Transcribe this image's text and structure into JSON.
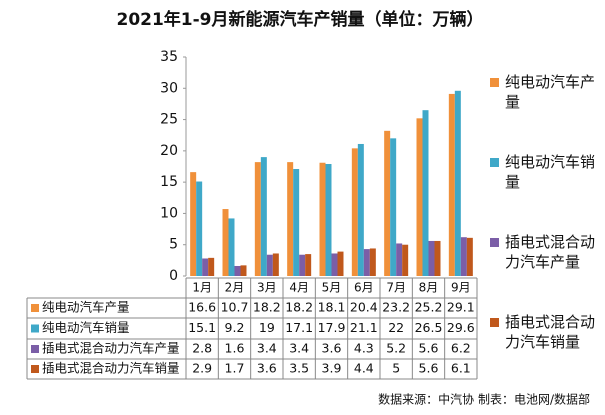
{
  "chart_data": {
    "type": "bar",
    "title": "2021年1-9月新能源汽车产销量（单位：万辆）",
    "categories": [
      "1月",
      "2月",
      "3月",
      "4月",
      "5月",
      "6月",
      "7月",
      "8月",
      "9月"
    ],
    "series": [
      {
        "name": "纯电动汽车产量",
        "color": "#f0903a",
        "values": [
          16.6,
          10.7,
          18.2,
          18.2,
          18.1,
          20.4,
          23.2,
          25.2,
          29.1
        ]
      },
      {
        "name": "纯电动汽车销量",
        "color": "#3fa8c8",
        "values": [
          15.1,
          9.2,
          19,
          17.1,
          17.9,
          21.1,
          22,
          26.5,
          29.6
        ]
      },
      {
        "name": "插电式混合动力汽车产量",
        "color": "#7b5ea7",
        "values": [
          2.8,
          1.6,
          3.4,
          3.4,
          3.6,
          4.3,
          5.2,
          5.6,
          6.2
        ]
      },
      {
        "name": "插电式混合动力汽车销量",
        "color": "#c0581c",
        "values": [
          2.9,
          1.7,
          3.6,
          3.5,
          3.9,
          4.4,
          5,
          5.6,
          6.1
        ]
      }
    ],
    "ylim": [
      0,
      35
    ],
    "yticks": [
      0,
      5,
      10,
      15,
      20,
      25,
      30,
      35
    ],
    "grid": false,
    "legend": "right",
    "source": "数据来源：中汽协 制表：电池网/数据部"
  }
}
